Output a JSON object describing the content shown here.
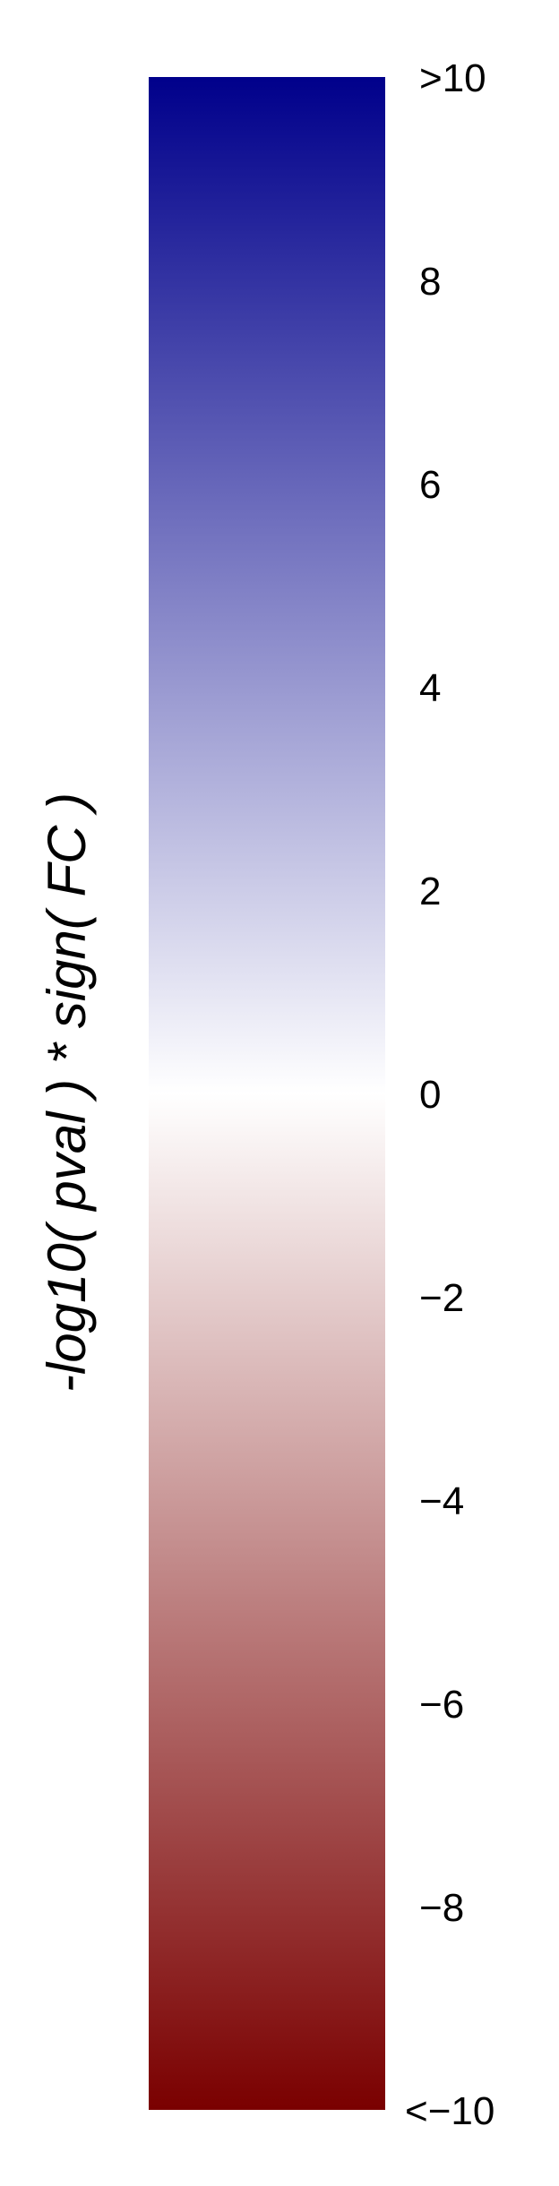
{
  "chart_data": {
    "type": "heatmap",
    "title": "",
    "ylabel": "-log10( pval ) * sign( FC )",
    "range": [
      -10,
      10
    ],
    "ticks": [
      {
        "value": 10,
        "label": ">10"
      },
      {
        "value": 8,
        "label": "8"
      },
      {
        "value": 6,
        "label": "6"
      },
      {
        "value": 4,
        "label": "4"
      },
      {
        "value": 2,
        "label": "2"
      },
      {
        "value": 0,
        "label": "0"
      },
      {
        "value": -2,
        "label": "−2"
      },
      {
        "value": -4,
        "label": "−4"
      },
      {
        "value": -6,
        "label": "−6"
      },
      {
        "value": -8,
        "label": "−8"
      },
      {
        "value": -10,
        "label": "<−10"
      }
    ],
    "colors": {
      "high": "#00008b",
      "mid": "#ffffff",
      "low": "#7a0000"
    }
  }
}
